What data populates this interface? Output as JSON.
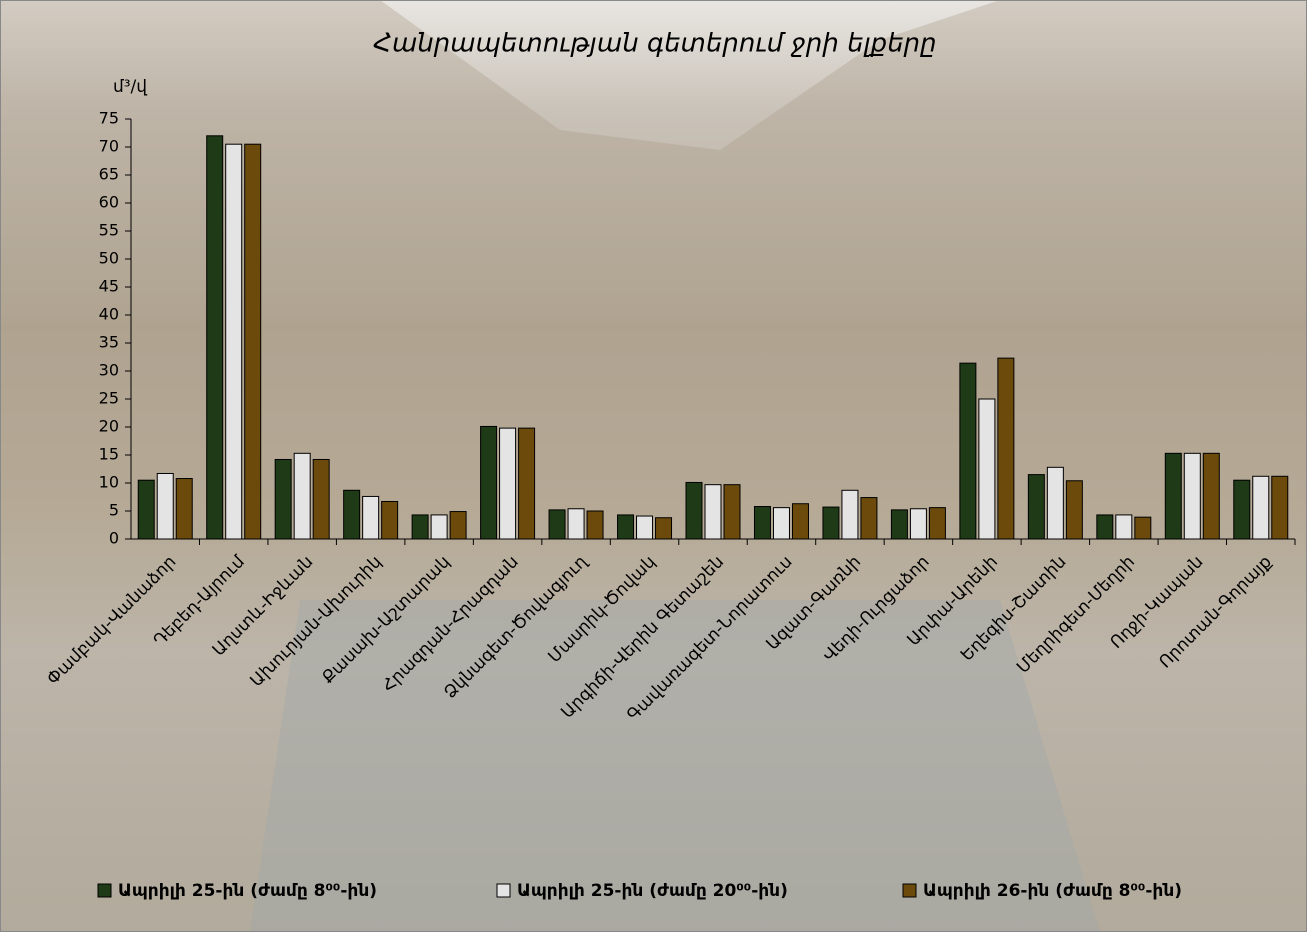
{
  "chart_data": {
    "type": "bar",
    "title": "Հանրապետության գետերում ջրի ելքերը",
    "y_label": "մ³/վ",
    "categories": [
      "Փամբակ-Վանաձոր",
      "Դեբեդ-Այրում",
      "Աղստև-Իջևան",
      "Ախուրյան-Ախուրիկ",
      "Քասախ-Աշտարակ",
      "Հրազդան-Հրազդան",
      "Ձկնագետ-Ծովագյուղ",
      "Մասրիկ-Ծովակ",
      "Արգիճի-Վերին Գետաշեն",
      "Գավառագետ-Նորատուս",
      "Ազատ-Գառնի",
      "Վեդի-Ուրցաձոր",
      "Արփա-Արենի",
      "Եղեգիս-Շատին",
      "Մեղրիգետ-Մեղրի",
      "Ողջի-Կապան",
      "Որոտան-Գորայք"
    ],
    "series": [
      {
        "name": "Ապրիլի 25-ին (ժամը 8⁰⁰-ին)",
        "color": "#1e3a16",
        "values": [
          10.5,
          72,
          14.2,
          8.7,
          4.3,
          20.1,
          5.2,
          4.3,
          10.1,
          5.8,
          5.7,
          5.2,
          31.4,
          11.5,
          4.3,
          15.3,
          10.5
        ]
      },
      {
        "name": "Ապրիլի 25-ին (ժամը 20⁰⁰-ին)",
        "color": "#e4e4e4",
        "values": [
          11.7,
          70.5,
          15.3,
          7.6,
          4.3,
          19.8,
          5.4,
          4.1,
          9.7,
          5.6,
          8.7,
          5.4,
          25,
          12.8,
          4.3,
          15.3,
          11.2
        ]
      },
      {
        "name": "Ապրիլի 26-ին (ժամը 8⁰⁰-ին)",
        "color": "#6b4a0c",
        "values": [
          10.8,
          70.5,
          14.2,
          6.7,
          4.9,
          19.8,
          5.0,
          3.8,
          9.7,
          6.3,
          7.4,
          5.6,
          32.3,
          10.4,
          3.9,
          15.3,
          11.2
        ]
      }
    ],
    "ylim": [
      0,
      75
    ],
    "yticks": [
      0,
      5,
      10,
      15,
      20,
      25,
      30,
      35,
      40,
      45,
      50,
      55,
      60,
      65,
      70,
      75
    ],
    "grid": false,
    "legend": "bottom"
  }
}
